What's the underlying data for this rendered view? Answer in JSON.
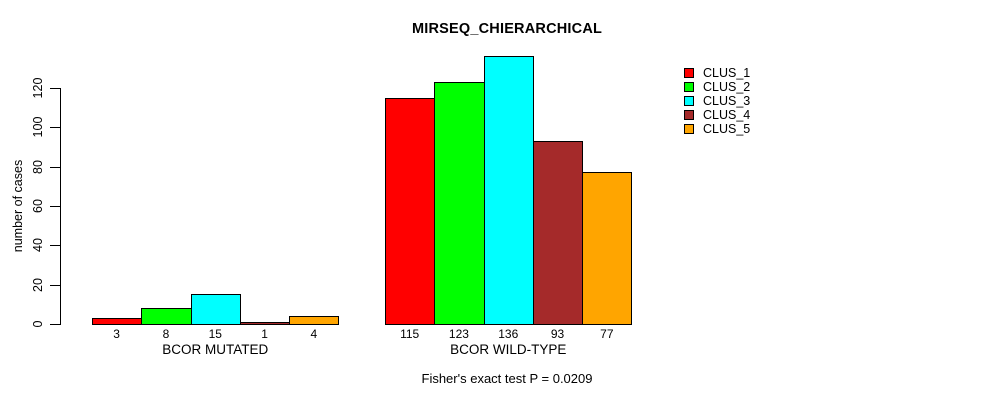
{
  "chart_data": {
    "type": "bar",
    "title": "MIRSEQ_CHIERARCHICAL",
    "subtitle": "Fisher's exact test P = 0.0209",
    "ylabel": "number of cases",
    "xlabel": "",
    "yticks": [
      0,
      20,
      40,
      60,
      80,
      100,
      120
    ],
    "ylim": [
      0,
      140
    ],
    "grid": false,
    "legend_position": "right",
    "categories": [
      "BCOR MUTATED",
      "BCOR WILD-TYPE"
    ],
    "series": [
      {
        "name": "CLUS_1",
        "color": "#FF0000",
        "values": [
          3,
          115
        ]
      },
      {
        "name": "CLUS_2",
        "color": "#00FF00",
        "values": [
          8,
          123
        ]
      },
      {
        "name": "CLUS_3",
        "color": "#00FFFF",
        "values": [
          15,
          136
        ]
      },
      {
        "name": "CLUS_4",
        "color": "#A52A2A",
        "values": [
          1,
          93
        ]
      },
      {
        "name": "CLUS_5",
        "color": "#FFA500",
        "values": [
          4,
          77
        ]
      }
    ],
    "bar_value_labels": [
      [
        "3",
        "8",
        "15",
        "1",
        "4"
      ],
      [
        "115",
        "123",
        "136",
        "93",
        "77"
      ]
    ]
  }
}
